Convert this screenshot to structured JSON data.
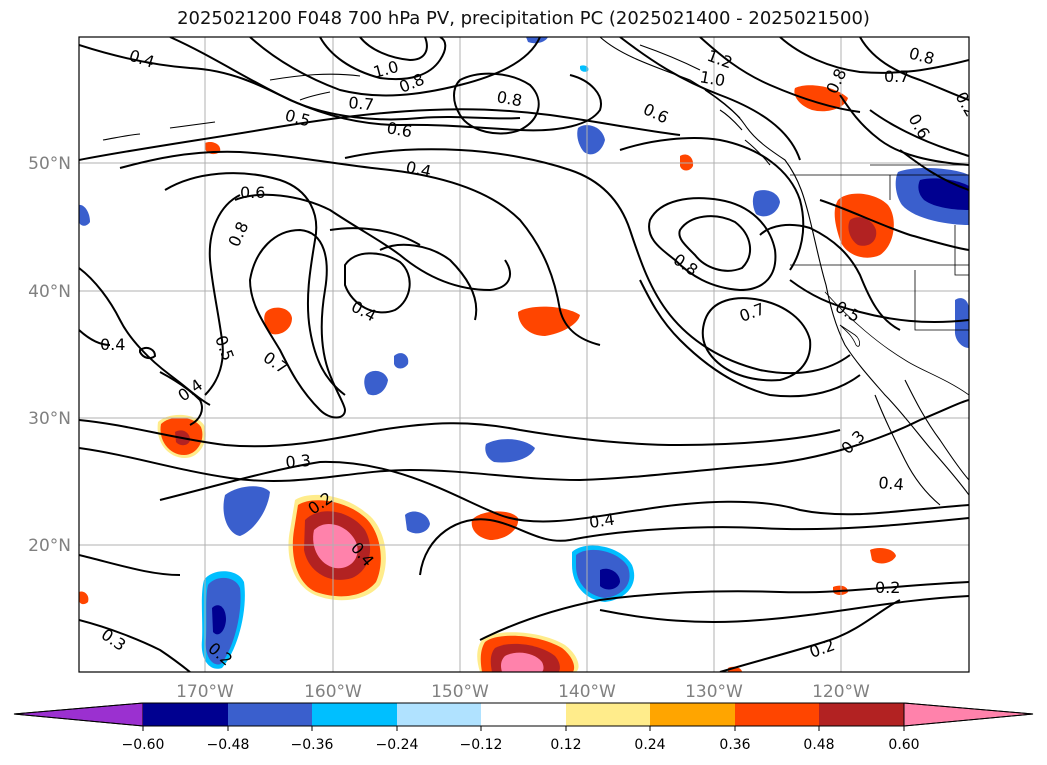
{
  "title": "2025021200 F048 700 hPa PV, precipitation PC (2025021400 - 2025021500)",
  "axes": {
    "lat_labels": [
      "50°N",
      "40°N",
      "30°N",
      "20°N"
    ],
    "lon_labels": [
      "170°W",
      "160°W",
      "150°W",
      "140°W",
      "130°W",
      "120°W"
    ]
  },
  "contour_labels": [
    "0.4",
    "1.0",
    "0.8",
    "1.2",
    "1.0",
    "0.8",
    "0.7",
    "0.8",
    "0.7",
    "0.5",
    "0.6",
    "0.8",
    "0.6",
    "0.6",
    "0.4",
    "0.6",
    "0.8",
    "0.4",
    "0.8",
    "0.7",
    "0.4",
    "0.5",
    "0.7",
    "0.4",
    "0.4",
    "0.5",
    "0.3",
    "0.3",
    "0.4",
    "0.2",
    "0.4",
    "0.2",
    "0.2",
    "0.3",
    "0.2",
    "0.2"
  ],
  "colorbar": {
    "colors": [
      "#9b30d0",
      "#000090",
      "#3a5fcd",
      "#00bfff",
      "#b0e2ff",
      "#ffffff",
      "#ffec8b",
      "#ffa500",
      "#ff4500",
      "#b22222",
      "#ff82ab"
    ],
    "tick_labels": [
      "−0.60",
      "−0.48",
      "−0.36",
      "−0.24",
      "−0.12",
      "0.12",
      "0.24",
      "0.36",
      "0.48",
      "0.60"
    ]
  },
  "palette": {
    "grid": "#b0b0b0",
    "contour": "#000000",
    "axis_text": "#808080"
  }
}
